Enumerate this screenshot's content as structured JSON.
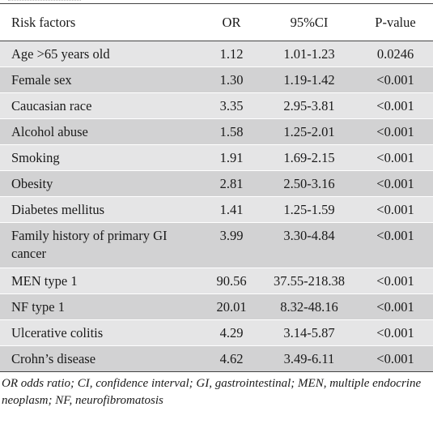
{
  "table": {
    "headers": [
      "Risk factors",
      "OR",
      "95%CI",
      "P-value"
    ],
    "rows": [
      {
        "factor": "Age >65 years old",
        "or": "1.12",
        "ci": "1.01-1.23",
        "p": "0.0246"
      },
      {
        "factor": "Female sex",
        "or": "1.30",
        "ci": "1.19-1.42",
        "p": "<0.001"
      },
      {
        "factor": "Caucasian race",
        "or": "3.35",
        "ci": "2.95-3.81",
        "p": "<0.001"
      },
      {
        "factor": "Alcohol abuse",
        "or": "1.58",
        "ci": "1.25-2.01",
        "p": "<0.001"
      },
      {
        "factor": "Smoking",
        "or": "1.91",
        "ci": "1.69-2.15",
        "p": "<0.001"
      },
      {
        "factor": "Obesity",
        "or": "2.81",
        "ci": "2.50-3.16",
        "p": "<0.001"
      },
      {
        "factor": "Diabetes mellitus",
        "or": "1.41",
        "ci": "1.25-1.59",
        "p": "<0.001"
      },
      {
        "factor": "Family history of primary GI cancer",
        "or": "3.99",
        "ci": "3.30-4.84",
        "p": "<0.001"
      },
      {
        "factor": "MEN type 1",
        "or": "90.56",
        "ci": "37.55-218.38",
        "p": "<0.001"
      },
      {
        "factor": "NF type 1",
        "or": "20.01",
        "ci": "8.32-48.16",
        "p": "<0.001"
      },
      {
        "factor": "Ulcerative colitis",
        "or": "4.29",
        "ci": "3.14-5.87",
        "p": "<0.001"
      },
      {
        "factor": "Crohn’s disease",
        "or": "4.62",
        "ci": "3.49-6.11",
        "p": "<0.001"
      }
    ]
  },
  "footnote": "OR odds ratio; CI, confidence interval; GI, gastrointestinal; MEN, multiple endocrine neoplasm; NF, neurofibromatosis",
  "colors": {
    "row_odd": "#e5e5e6",
    "row_even": "#d2d2d3",
    "rule": "#444444",
    "text": "#1a1a1a"
  }
}
